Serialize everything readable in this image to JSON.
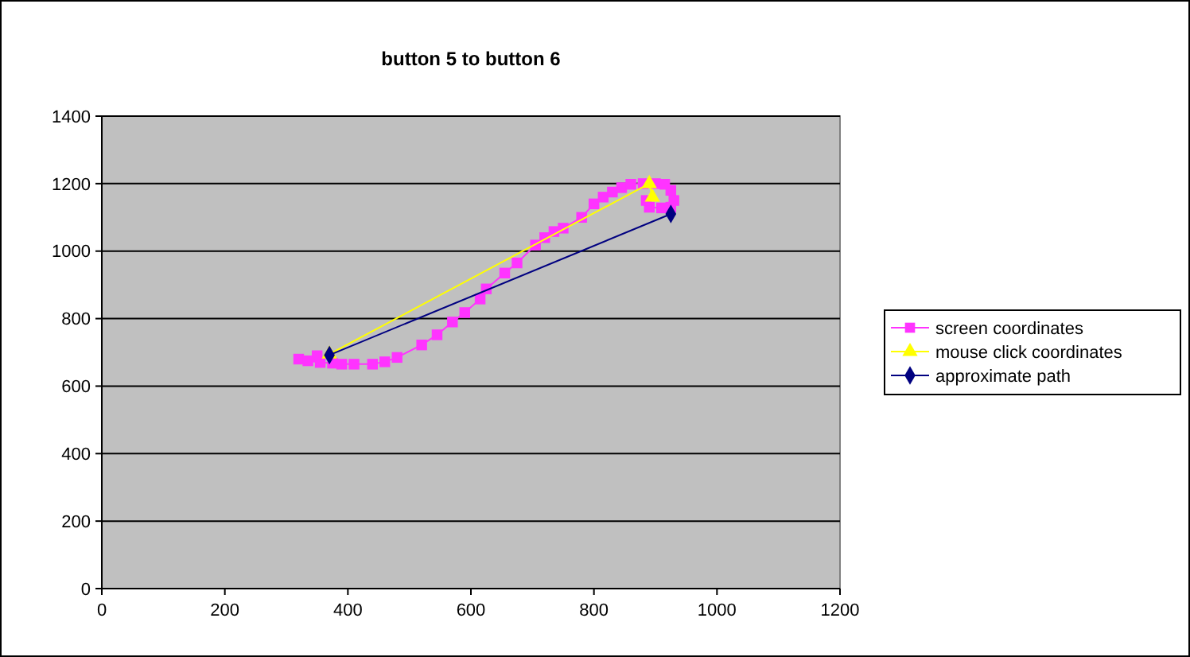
{
  "chart_data": {
    "type": "line",
    "title": "button 5 to button 6",
    "xlim": [
      0,
      1200
    ],
    "xticks": [
      0,
      200,
      400,
      600,
      800,
      1000,
      1200
    ],
    "ylim": [
      0,
      1400
    ],
    "yticks": [
      0,
      200,
      400,
      600,
      800,
      1000,
      1200,
      1400
    ],
    "grid": "y",
    "legend": "right",
    "series": [
      {
        "name": "screen coordinates",
        "color": "#ff33ff",
        "marker": "square",
        "x": [
          350,
          320,
          335,
          355,
          375,
          390,
          410,
          440,
          460,
          480,
          520,
          545,
          570,
          590,
          615,
          625,
          655,
          675,
          705,
          720,
          735,
          750,
          780,
          800,
          815,
          830,
          845,
          860,
          880,
          900,
          915,
          925,
          930,
          925,
          910,
          890,
          885
        ],
        "values": [
          690,
          680,
          675,
          670,
          668,
          665,
          665,
          665,
          672,
          685,
          722,
          752,
          790,
          818,
          858,
          888,
          935,
          965,
          1018,
          1040,
          1058,
          1068,
          1100,
          1140,
          1160,
          1175,
          1188,
          1198,
          1200,
          1200,
          1198,
          1180,
          1150,
          1130,
          1128,
          1130,
          1150
        ]
      },
      {
        "name": "mouse click coordinates",
        "color": "#ffff00",
        "marker": "triangle",
        "x": [
          370,
          890,
          895
        ],
        "values": [
          695,
          1200,
          1160
        ]
      },
      {
        "name": "approximate path",
        "color": "#000080",
        "marker": "diamond",
        "x": [
          370,
          925
        ],
        "values": [
          692,
          1110
        ]
      }
    ]
  }
}
